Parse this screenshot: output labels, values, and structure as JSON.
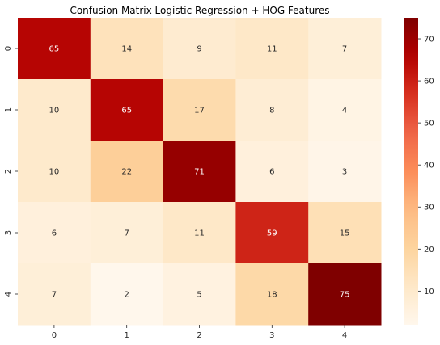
{
  "chart_data": {
    "type": "heatmap",
    "title": "Confusion Matrix Logistic Regression + HOG Features",
    "x_categories": [
      "0",
      "1",
      "2",
      "3",
      "4"
    ],
    "y_categories": [
      "0",
      "1",
      "2",
      "3",
      "4"
    ],
    "values": [
      [
        65,
        14,
        9,
        11,
        7
      ],
      [
        10,
        65,
        17,
        8,
        4
      ],
      [
        10,
        22,
        71,
        6,
        3
      ],
      [
        6,
        7,
        11,
        59,
        15
      ],
      [
        7,
        2,
        5,
        18,
        75
      ]
    ],
    "colormap": "OrRd",
    "vmin": 2,
    "vmax": 75,
    "colorbar_ticks": [
      10,
      20,
      30,
      40,
      50,
      60,
      70
    ],
    "annotations": true
  }
}
